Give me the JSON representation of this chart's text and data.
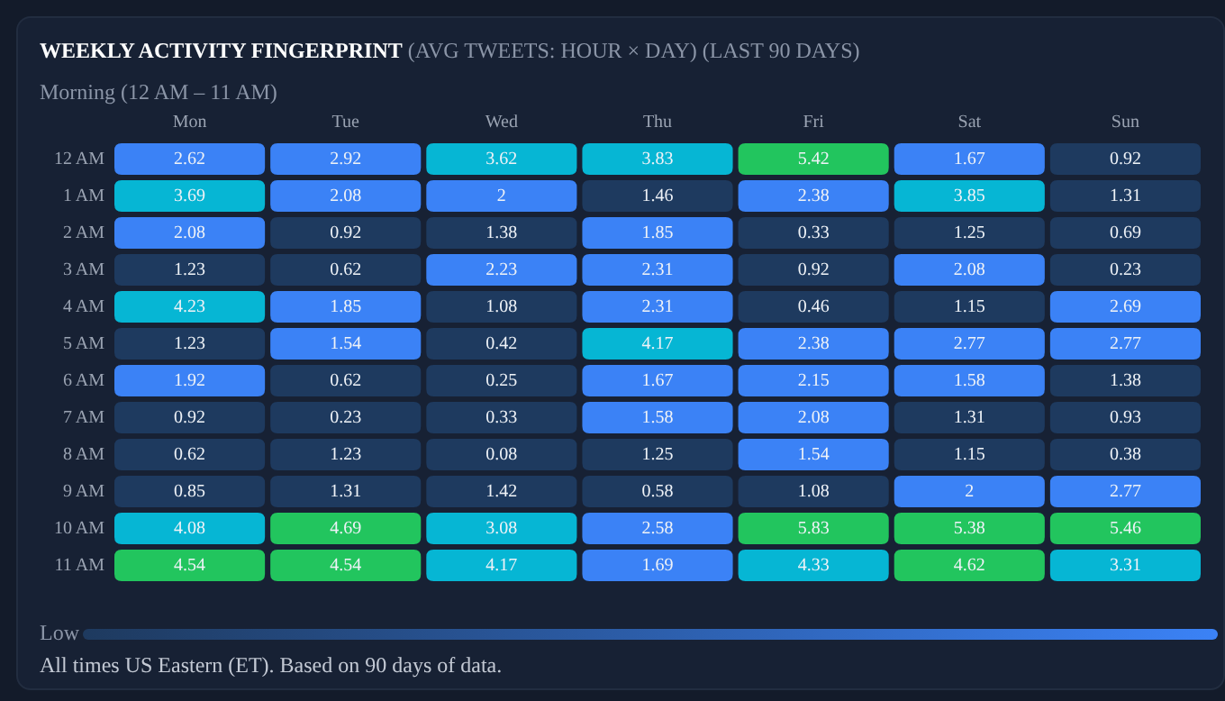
{
  "chart_data": {
    "type": "heatmap",
    "title": "WEEKLY ACTIVITY FINGERPRINT",
    "subtitle": "(AVG TWEETS: HOUR × DAY)  (LAST 90 DAYS)",
    "categories": [
      "Mon",
      "Tue",
      "Wed",
      "Thu",
      "Fri",
      "Sat",
      "Sun"
    ],
    "y_categories": [
      "12 AM",
      "1 AM",
      "2 AM",
      "3 AM",
      "4 AM",
      "5 AM",
      "6 AM",
      "7 AM",
      "8 AM",
      "9 AM",
      "10 AM",
      "11 AM"
    ],
    "cells": [
      [
        2.62,
        2.92,
        3.62,
        3.83,
        5.42,
        1.67,
        0.92
      ],
      [
        3.69,
        2.08,
        2,
        1.46,
        2.38,
        3.85,
        1.31
      ],
      [
        2.08,
        0.92,
        1.38,
        1.85,
        0.33,
        1.25,
        0.69
      ],
      [
        1.23,
        0.62,
        2.23,
        2.31,
        0.92,
        2.08,
        0.23
      ],
      [
        4.23,
        1.85,
        1.08,
        2.31,
        0.46,
        1.15,
        2.69
      ],
      [
        1.23,
        1.54,
        0.42,
        4.17,
        2.38,
        2.77,
        2.77
      ],
      [
        1.92,
        0.62,
        0.25,
        1.67,
        2.15,
        1.58,
        1.38
      ],
      [
        0.92,
        0.23,
        0.33,
        1.58,
        2.08,
        1.31,
        0.93
      ],
      [
        0.62,
        1.23,
        0.08,
        1.25,
        1.54,
        1.15,
        0.38
      ],
      [
        0.85,
        1.31,
        1.42,
        0.58,
        1.08,
        2,
        2.77
      ],
      [
        4.08,
        4.69,
        3.08,
        2.58,
        5.83,
        5.38,
        5.46
      ],
      [
        4.54,
        4.54,
        4.17,
        1.69,
        4.33,
        4.62,
        3.31
      ]
    ],
    "colors": [
      [
        "#3b82f6",
        "#3b82f6",
        "#06b6d4",
        "#06b6d4",
        "#22c55e",
        "#3b82f6",
        "#1e3a5f"
      ],
      [
        "#06b6d4",
        "#3b82f6",
        "#3b82f6",
        "#1e3a5f",
        "#3b82f6",
        "#06b6d4",
        "#1e3a5f"
      ],
      [
        "#3b82f6",
        "#1e3a5f",
        "#1e3a5f",
        "#3b82f6",
        "#1e3a5f",
        "#1e3a5f",
        "#1e3a5f"
      ],
      [
        "#1e3a5f",
        "#1e3a5f",
        "#3b82f6",
        "#3b82f6",
        "#1e3a5f",
        "#3b82f6",
        "#1e3a5f"
      ],
      [
        "#06b6d4",
        "#3b82f6",
        "#1e3a5f",
        "#3b82f6",
        "#1e3a5f",
        "#1e3a5f",
        "#3b82f6"
      ],
      [
        "#1e3a5f",
        "#3b82f6",
        "#1e3a5f",
        "#06b6d4",
        "#3b82f6",
        "#3b82f6",
        "#3b82f6"
      ],
      [
        "#3b82f6",
        "#1e3a5f",
        "#1e3a5f",
        "#3b82f6",
        "#3b82f6",
        "#3b82f6",
        "#1e3a5f"
      ],
      [
        "#1e3a5f",
        "#1e3a5f",
        "#1e3a5f",
        "#3b82f6",
        "#3b82f6",
        "#1e3a5f",
        "#1e3a5f"
      ],
      [
        "#1e3a5f",
        "#1e3a5f",
        "#1e3a5f",
        "#1e3a5f",
        "#3b82f6",
        "#1e3a5f",
        "#1e3a5f"
      ],
      [
        "#1e3a5f",
        "#1e3a5f",
        "#1e3a5f",
        "#1e3a5f",
        "#1e3a5f",
        "#3b82f6",
        "#3b82f6"
      ],
      [
        "#06b6d4",
        "#22c55e",
        "#06b6d4",
        "#3b82f6",
        "#22c55e",
        "#22c55e",
        "#22c55e"
      ],
      [
        "#22c55e",
        "#22c55e",
        "#06b6d4",
        "#3b82f6",
        "#06b6d4",
        "#22c55e",
        "#06b6d4"
      ]
    ],
    "data_labels": true,
    "grid": false,
    "annotations": [
      "Morning (12 AM – 11 AM)",
      "Low",
      "All times US Eastern (ET). Based on 90 days of data."
    ]
  }
}
